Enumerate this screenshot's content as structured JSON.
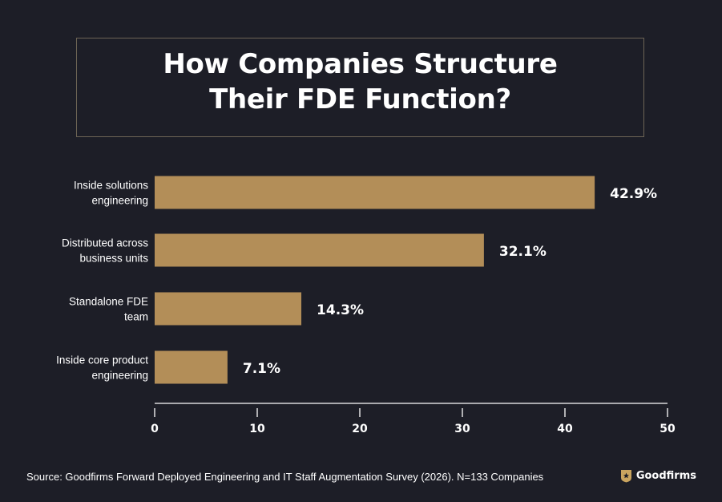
{
  "title": "How Companies Structure\nTheir FDE Function?",
  "chart_data": {
    "type": "bar",
    "orientation": "horizontal",
    "categories": [
      "Inside solutions\nengineering",
      "Distributed across\nbusiness units",
      "Standalone FDE\nteam",
      "Inside core product\nengineering"
    ],
    "values": [
      42.9,
      32.1,
      14.3,
      7.1
    ],
    "value_labels": [
      "42.9%",
      "32.1%",
      "14.3%",
      "7.1%"
    ],
    "xlim": [
      0,
      50
    ],
    "xticks": [
      0,
      10,
      20,
      30,
      40,
      50
    ],
    "grid": false,
    "bar_color": "#b38e58"
  },
  "footer": {
    "source": "Source: Goodfirms Forward Deployed Engineering and IT Staff Augmentation Survey (2026). N=133 Companies",
    "brand": "Goodfirms"
  },
  "colors": {
    "background": "#1d1e27",
    "text": "#ffffff",
    "bar": "#b38e58",
    "brand_icon": "#c9a45f"
  }
}
